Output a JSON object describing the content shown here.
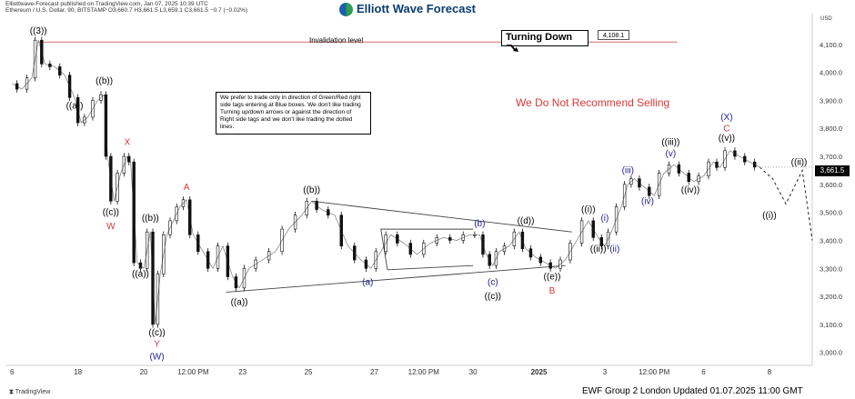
{
  "header": {
    "source_line": "Elliottwave-Forecast published on TradingView.com, Jan 07, 2025 10:39 UTC",
    "symbol_line": "Ethereum / U.S. Dollar, 90, BITSTAMP  O3,660.7 H3,661.5 L3,659.1 C3,661.5 −0.7 (−0.02%)",
    "brand": "Elliott Wave Forecast"
  },
  "footer": {
    "platform": "TradingView",
    "updated": "EWF Group 2 London Updated 01.07.2025 11:00 GMT"
  },
  "chart_data": {
    "type": "line",
    "currency": "USD",
    "y_ticks": [
      3000,
      3100,
      3200,
      3300,
      3400,
      3500,
      3600,
      3700,
      3800,
      3900,
      4000,
      4100
    ],
    "y_tick_labels": [
      "3,000.0",
      "3,100.0",
      "3,200.0",
      "3,300.0",
      "3,400.0",
      "3,500.0",
      "3,600.0",
      "3,700.0",
      "3,800.0",
      "3,900.0",
      "4,000.0",
      "4,100.0"
    ],
    "ylim": [
      2960,
      4200
    ],
    "x_ticks": [
      {
        "t": 0,
        "label": "6"
      },
      {
        "t": 2,
        "label": "18"
      },
      {
        "t": 4,
        "label": "20"
      },
      {
        "t": 5.5,
        "label": "12:00 PM"
      },
      {
        "t": 7,
        "label": "23"
      },
      {
        "t": 9,
        "label": "25"
      },
      {
        "t": 11,
        "label": "27"
      },
      {
        "t": 12.5,
        "label": "12:00 PM"
      },
      {
        "t": 14,
        "label": "30"
      },
      {
        "t": 16,
        "label": "2025"
      },
      {
        "t": 18,
        "label": "3"
      },
      {
        "t": 19.5,
        "label": "12:00 PM"
      },
      {
        "t": 21,
        "label": "6"
      },
      {
        "t": 23,
        "label": "8"
      }
    ],
    "xlim": [
      -0.2,
      24.3
    ],
    "price": [
      [
        0,
        3960
      ],
      [
        0.3,
        3940
      ],
      [
        0.6,
        3980
      ],
      [
        0.8,
        4115
      ],
      [
        1.0,
        4030
      ],
      [
        1.3,
        4020
      ],
      [
        1.6,
        3990
      ],
      [
        1.9,
        3910
      ],
      [
        2.1,
        3820
      ],
      [
        2.3,
        3840
      ],
      [
        2.6,
        3900
      ],
      [
        2.8,
        3920
      ],
      [
        2.9,
        3700
      ],
      [
        3.1,
        3540
      ],
      [
        3.3,
        3640
      ],
      [
        3.5,
        3700
      ],
      [
        3.6,
        3680
      ],
      [
        3.8,
        3320
      ],
      [
        4.0,
        3300
      ],
      [
        4.2,
        3430
      ],
      [
        4.35,
        3100
      ],
      [
        4.5,
        3280
      ],
      [
        4.7,
        3420
      ],
      [
        4.9,
        3470
      ],
      [
        5.1,
        3520
      ],
      [
        5.3,
        3545
      ],
      [
        5.5,
        3420
      ],
      [
        5.8,
        3360
      ],
      [
        6.1,
        3300
      ],
      [
        6.4,
        3380
      ],
      [
        6.7,
        3270
      ],
      [
        6.9,
        3230
      ],
      [
        7.2,
        3300
      ],
      [
        7.6,
        3330
      ],
      [
        8.0,
        3360
      ],
      [
        8.4,
        3440
      ],
      [
        8.8,
        3490
      ],
      [
        9.1,
        3540
      ],
      [
        9.4,
        3510
      ],
      [
        9.8,
        3490
      ],
      [
        10.2,
        3380
      ],
      [
        10.6,
        3330
      ],
      [
        10.9,
        3300
      ],
      [
        11.2,
        3360
      ],
      [
        11.5,
        3420
      ],
      [
        11.9,
        3390
      ],
      [
        12.3,
        3350
      ],
      [
        12.7,
        3390
      ],
      [
        13.1,
        3410
      ],
      [
        13.5,
        3400
      ],
      [
        13.9,
        3420
      ],
      [
        14.2,
        3420
      ],
      [
        14.4,
        3350
      ],
      [
        14.6,
        3310
      ],
      [
        14.8,
        3360
      ],
      [
        15.1,
        3380
      ],
      [
        15.4,
        3430
      ],
      [
        15.6,
        3370
      ],
      [
        15.9,
        3340
      ],
      [
        16.2,
        3320
      ],
      [
        16.5,
        3300
      ],
      [
        16.8,
        3330
      ],
      [
        17.1,
        3390
      ],
      [
        17.5,
        3470
      ],
      [
        17.8,
        3410
      ],
      [
        18.0,
        3380
      ],
      [
        18.2,
        3430
      ],
      [
        18.5,
        3520
      ],
      [
        18.7,
        3600
      ],
      [
        18.9,
        3620
      ],
      [
        19.2,
        3590
      ],
      [
        19.5,
        3560
      ],
      [
        19.8,
        3640
      ],
      [
        20.1,
        3670
      ],
      [
        20.4,
        3640
      ],
      [
        20.7,
        3610
      ],
      [
        21.0,
        3630
      ],
      [
        21.3,
        3680
      ],
      [
        21.5,
        3660
      ],
      [
        21.8,
        3720
      ],
      [
        22.1,
        3700
      ],
      [
        22.4,
        3680
      ],
      [
        22.7,
        3661.5
      ]
    ],
    "projection": [
      [
        22.7,
        3661.5
      ],
      [
        23.1,
        3620
      ],
      [
        23.5,
        3530
      ],
      [
        24.0,
        3650
      ],
      [
        24.3,
        3400
      ]
    ],
    "current_price_label": "3,661.5",
    "invalidation": {
      "value": 4108.1,
      "label": "Invalidation level",
      "tag": "4,108.1"
    },
    "trendlines": [
      {
        "from": [
          6.5,
          3215
        ],
        "to": [
          16.8,
          3310
        ]
      },
      {
        "from": [
          9.1,
          3540
        ],
        "to": [
          17.0,
          3430
        ]
      },
      {
        "from": [
          11.2,
          3440
        ],
        "to": [
          14.0,
          3440
        ]
      },
      {
        "from": [
          11.2,
          3440
        ],
        "to": [
          11.4,
          3295
        ]
      },
      {
        "from": [
          11.4,
          3295
        ],
        "to": [
          14.0,
          3310
        ]
      }
    ],
    "annotations": [
      {
        "text": "((3))",
        "t": 0.8,
        "v": 4138,
        "color": "#000000"
      },
      {
        "text": "((b))",
        "t": 2.8,
        "v": 3960,
        "color": "#000000"
      },
      {
        "text": "((a))",
        "t": 1.9,
        "v": 3870,
        "color": "#000000"
      },
      {
        "text": "X",
        "t": 3.5,
        "v": 3740,
        "color": "#d93838"
      },
      {
        "text": "((c))",
        "t": 3.0,
        "v": 3490,
        "color": "#000000"
      },
      {
        "text": "W",
        "t": 3.0,
        "v": 3440,
        "color": "#d93838"
      },
      {
        "text": "((b))",
        "t": 4.2,
        "v": 3470,
        "color": "#000000"
      },
      {
        "text": "((a))",
        "t": 3.9,
        "v": 3270,
        "color": "#000000"
      },
      {
        "text": "A",
        "t": 5.3,
        "v": 3580,
        "color": "#d93838"
      },
      {
        "text": "((c))",
        "t": 4.4,
        "v": 3060,
        "color": "#000000"
      },
      {
        "text": "Y",
        "t": 4.4,
        "v": 3020,
        "color": "#d93838"
      },
      {
        "text": "(W)",
        "t": 4.4,
        "v": 2975,
        "color": "#1e1e96"
      },
      {
        "text": "((a))",
        "t": 6.9,
        "v": 3170,
        "color": "#000000"
      },
      {
        "text": "((b))",
        "t": 9.1,
        "v": 3570,
        "color": "#000000"
      },
      {
        "text": "(a)",
        "t": 10.8,
        "v": 3240,
        "color": "#1e1e96"
      },
      {
        "text": "(b)",
        "t": 14.2,
        "v": 3450,
        "color": "#1e1e96"
      },
      {
        "text": "(c)",
        "t": 14.6,
        "v": 3240,
        "color": "#1e1e96"
      },
      {
        "text": "((c))",
        "t": 14.6,
        "v": 3190,
        "color": "#000000"
      },
      {
        "text": "((d))",
        "t": 15.6,
        "v": 3460,
        "color": "#000000"
      },
      {
        "text": "((e))",
        "t": 16.4,
        "v": 3260,
        "color": "#000000"
      },
      {
        "text": "B",
        "t": 16.4,
        "v": 3210,
        "color": "#d93838"
      },
      {
        "text": "((i))",
        "t": 17.5,
        "v": 3500,
        "color": "#000000"
      },
      {
        "text": "(i)",
        "t": 18.0,
        "v": 3470,
        "color": "#1e1e96"
      },
      {
        "text": "((ii))",
        "t": 17.8,
        "v": 3360,
        "color": "#000000"
      },
      {
        "text": "(ii)",
        "t": 18.3,
        "v": 3360,
        "color": "#1e1e96"
      },
      {
        "text": "(iii)",
        "t": 18.7,
        "v": 3640,
        "color": "#1e1e96"
      },
      {
        "text": "(iv)",
        "t": 19.3,
        "v": 3530,
        "color": "#1e1e96"
      },
      {
        "text": "((iii))",
        "t": 20.0,
        "v": 3740,
        "color": "#000000"
      },
      {
        "text": "(v)",
        "t": 20.0,
        "v": 3700,
        "color": "#1e1e96"
      },
      {
        "text": "((iv))",
        "t": 20.6,
        "v": 3570,
        "color": "#000000"
      },
      {
        "text": "(X)",
        "t": 21.7,
        "v": 3830,
        "color": "#1e1e96"
      },
      {
        "text": "C",
        "t": 21.7,
        "v": 3790,
        "color": "#d93838"
      },
      {
        "text": "((v))",
        "t": 21.7,
        "v": 3755,
        "color": "#000000"
      },
      {
        "text": "((ii))",
        "t": 23.9,
        "v": 3670,
        "color": "#000000"
      },
      {
        "text": "((i))",
        "t": 23.0,
        "v": 3480,
        "color": "#000000"
      }
    ]
  },
  "overlays": {
    "note": "We prefer to trade only in direction of Green/Red right side tags entering at Blue boxes. We don't like trading Turning up/down arrows or against the direction of Right side tags and we don't like trading the dotted lines.",
    "turning": "Turning Down",
    "turning_icon": "trend-down-arrow-icon",
    "disclaimer": "We Do Not Recommend Selling"
  }
}
